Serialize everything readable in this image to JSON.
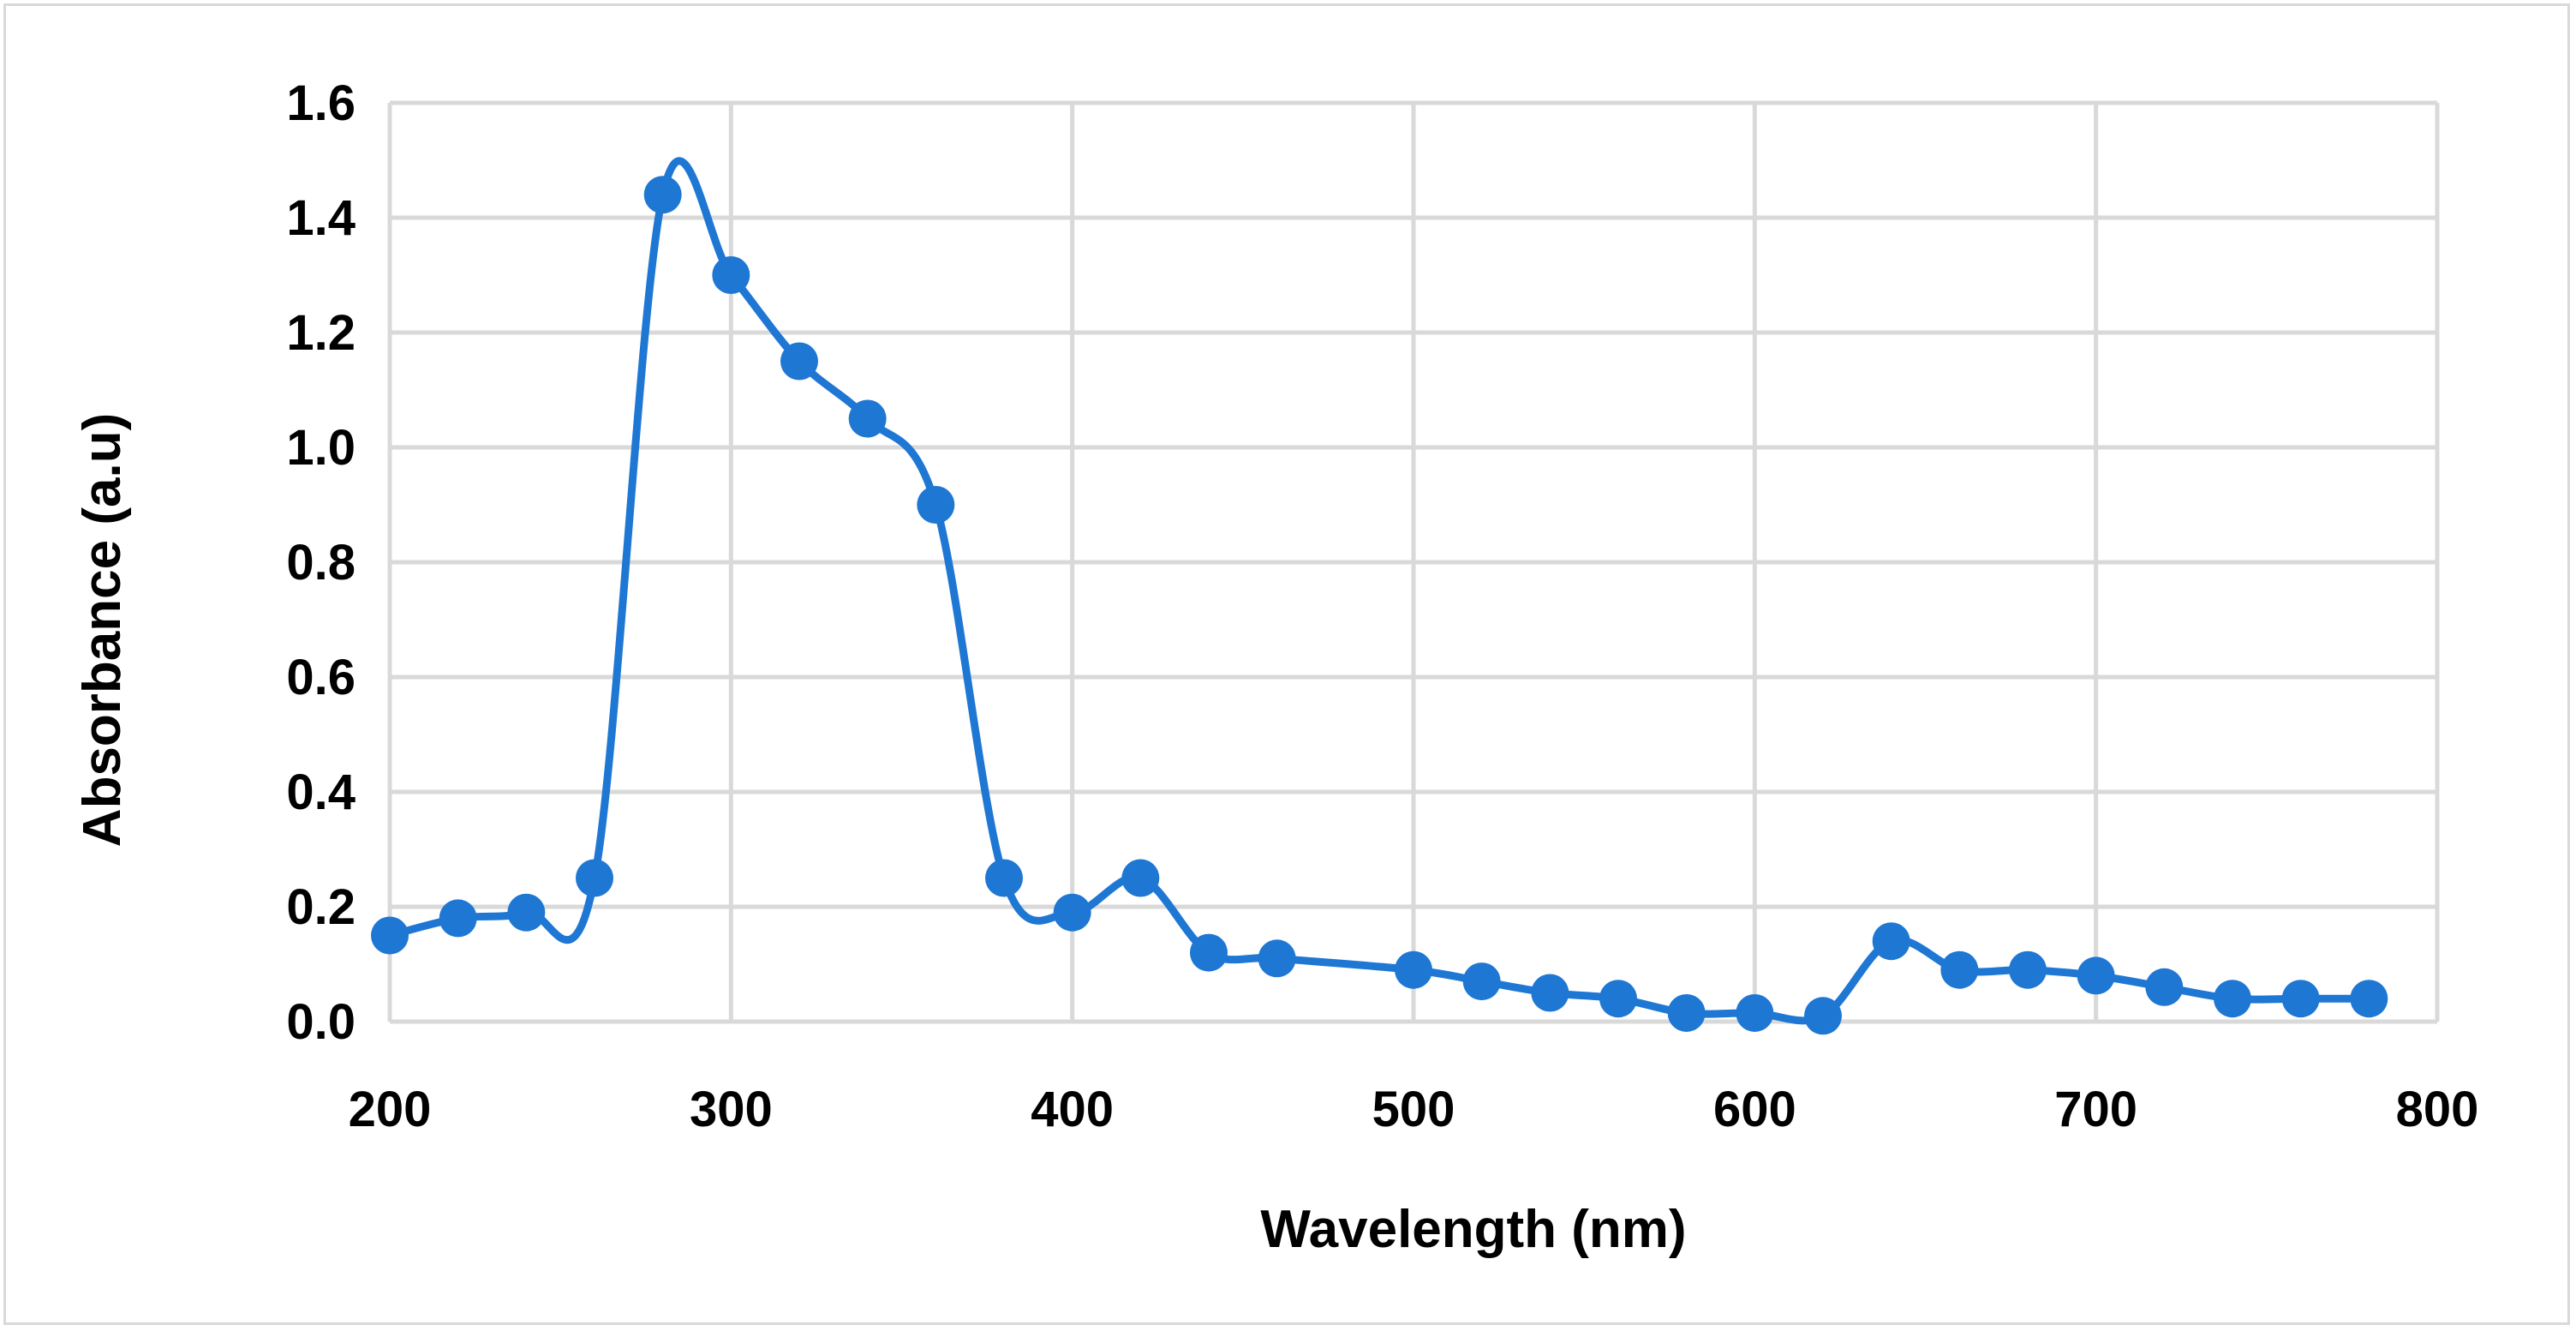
{
  "chart_data": {
    "type": "line",
    "title": "",
    "xlabel": "Wavelength (nm)",
    "ylabel": "Absorbance (a.u)",
    "xlim": [
      200,
      800
    ],
    "ylim": [
      0,
      1.6
    ],
    "x_ticks": [
      200,
      300,
      400,
      500,
      600,
      700,
      800
    ],
    "x_tick_labels": [
      "200",
      "300",
      "400",
      "500",
      "600",
      "700",
      "800"
    ],
    "y_ticks": [
      0,
      0.2,
      0.4,
      0.6,
      0.8,
      1.0,
      1.2,
      1.4,
      1.6
    ],
    "y_tick_labels": [
      "0.0",
      "0.2",
      "0.4",
      "0.6",
      "0.8",
      "1.0",
      "1.2",
      "1.4",
      "1.6"
    ],
    "grid": true,
    "legend": "none",
    "series": [
      {
        "name": "Absorbance",
        "color": "#1f77d4",
        "smooth": true,
        "x": [
          200,
          220,
          240,
          260,
          280,
          300,
          320,
          340,
          360,
          380,
          400,
          420,
          440,
          460,
          500,
          520,
          540,
          560,
          580,
          600,
          620,
          640,
          660,
          680,
          700,
          720,
          740,
          760,
          780
        ],
        "y": [
          0.15,
          0.18,
          0.19,
          0.25,
          1.44,
          1.3,
          1.15,
          1.05,
          0.9,
          0.25,
          0.19,
          0.25,
          0.12,
          0.11,
          0.09,
          0.07,
          0.05,
          0.04,
          0.015,
          0.015,
          0.01,
          0.14,
          0.09,
          0.09,
          0.08,
          0.06,
          0.04,
          0.04,
          0.04
        ]
      }
    ]
  }
}
